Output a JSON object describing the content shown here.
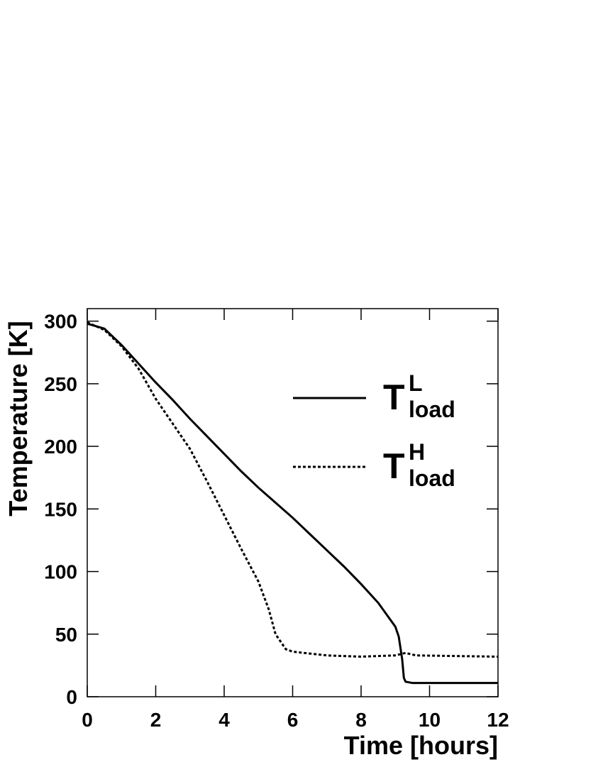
{
  "chart_data": {
    "type": "line",
    "xlabel": "Time [hours]",
    "ylabel": "Temperature [K]",
    "xlim": [
      0,
      12
    ],
    "xticks": [
      0,
      2,
      4,
      6,
      8,
      10,
      12
    ],
    "ylim": [
      0,
      310
    ],
    "yticks": [
      0,
      50,
      100,
      150,
      200,
      250,
      300
    ],
    "series": [
      {
        "name": "T",
        "sup": "L",
        "sub": "load",
        "color": "#000000",
        "dash": "solid",
        "x": [
          0,
          0.5,
          1,
          1.5,
          2,
          2.5,
          3,
          3.5,
          4,
          4.5,
          5,
          5.5,
          6,
          6.5,
          7,
          7.5,
          8,
          8.5,
          9,
          9.1,
          9.2,
          9.25,
          9.3,
          9.5,
          12
        ],
        "values": [
          298,
          294,
          281,
          266,
          251,
          237,
          222,
          208,
          194,
          180,
          167,
          155,
          143,
          130,
          117,
          104,
          90,
          75,
          56,
          48,
          30,
          15,
          12,
          11,
          11
        ]
      },
      {
        "name": "T",
        "sup": "H",
        "sub": "load",
        "color": "#000000",
        "dash": "dotted",
        "x": [
          0,
          0.5,
          1,
          1.5,
          2,
          2.5,
          3,
          3.5,
          4,
          4.5,
          5,
          5.3,
          5.5,
          5.8,
          6,
          7,
          8,
          9,
          9.3,
          9.6,
          12
        ],
        "values": [
          299,
          293,
          280,
          262,
          238,
          218,
          198,
          172,
          145,
          118,
          92,
          70,
          50,
          38,
          36,
          33,
          32,
          33,
          35,
          33,
          32
        ]
      }
    ]
  }
}
